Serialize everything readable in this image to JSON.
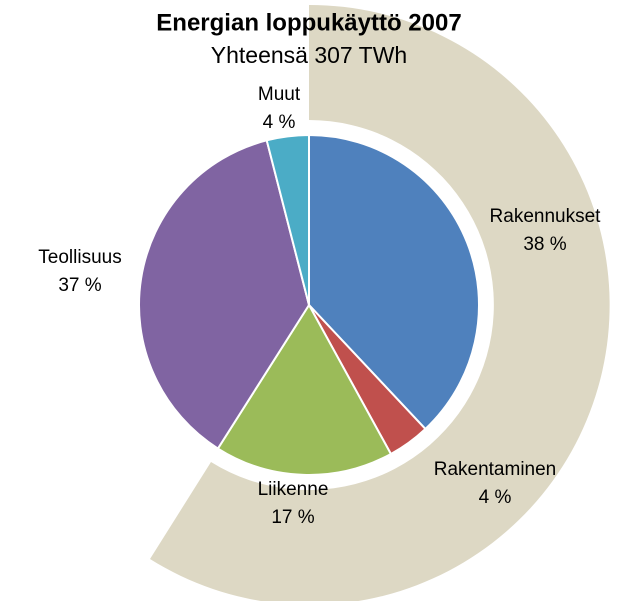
{
  "chart_data": {
    "type": "pie",
    "title": "Energian loppukäyttö 2007",
    "subtitle": "Yhteensä 307 TWh",
    "categories": [
      "Rakennukset",
      "Rakentaminen",
      "Liikenne",
      "Teollisuus",
      "Muut"
    ],
    "values": [
      38,
      4,
      17,
      37,
      4
    ],
    "value_labels": [
      "38 %",
      "4 %",
      "17 %",
      "37 %",
      "4 %"
    ],
    "colors": [
      "#4f81bd",
      "#c0504d",
      "#9bbb59",
      "#8064a2",
      "#4bacc6"
    ]
  }
}
